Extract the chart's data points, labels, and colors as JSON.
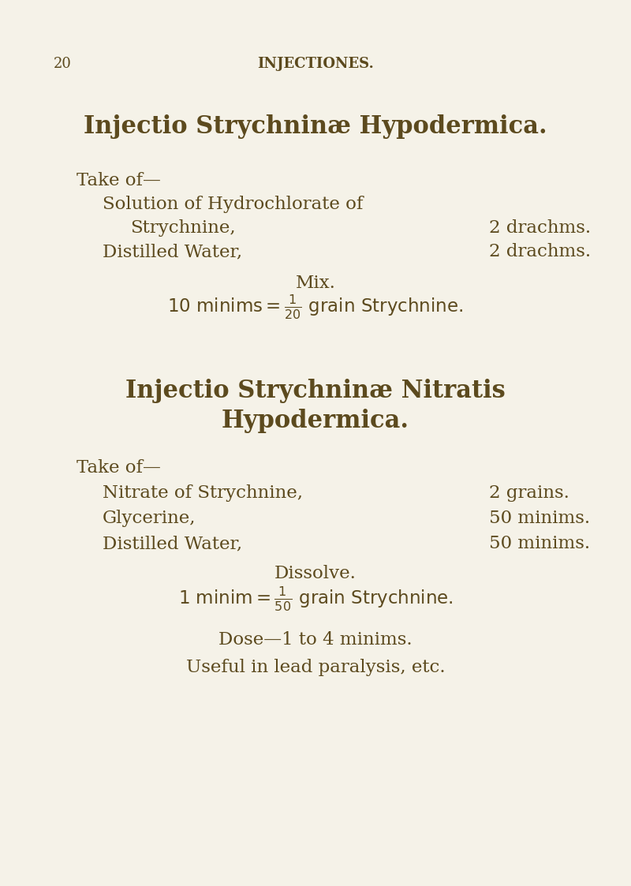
{
  "bg_color": "#f5f2e8",
  "text_color": "#5c4a1e",
  "page_number": "20",
  "header": "INJECTIONES.",
  "title1": "Injectio Strychninæ Hypodermica.",
  "take_of1": "Take of—",
  "item1a_left": "Solution of Hydrochlorate of",
  "item1b_left": "Strychnine,",
  "item1b_right": "2 drachms.",
  "item1c_left": "Distilled Water,",
  "item1c_right": "2 drachms.",
  "mix_line": "Mix.",
  "fraction1_num": "1",
  "fraction1_den": "20",
  "title2_line1": "Injectio Strychninæ Nitratis",
  "title2_line2": "Hypodermica.",
  "take_of2": "Take of—",
  "item2a_left": "Nitrate of Strychnine,",
  "item2a_right": "2 grains.",
  "item2b_left": "Glycerine,",
  "item2b_right": "50 minims.",
  "item2c_left": "Distilled Water,",
  "item2c_right": "50 minims.",
  "dissolve_line": "Dissolve.",
  "fraction2_num": "1",
  "fraction2_den": "50",
  "dose_line": "Dose—1 to 4 minims.",
  "useful_line": "Useful in lead paralysis, etc."
}
